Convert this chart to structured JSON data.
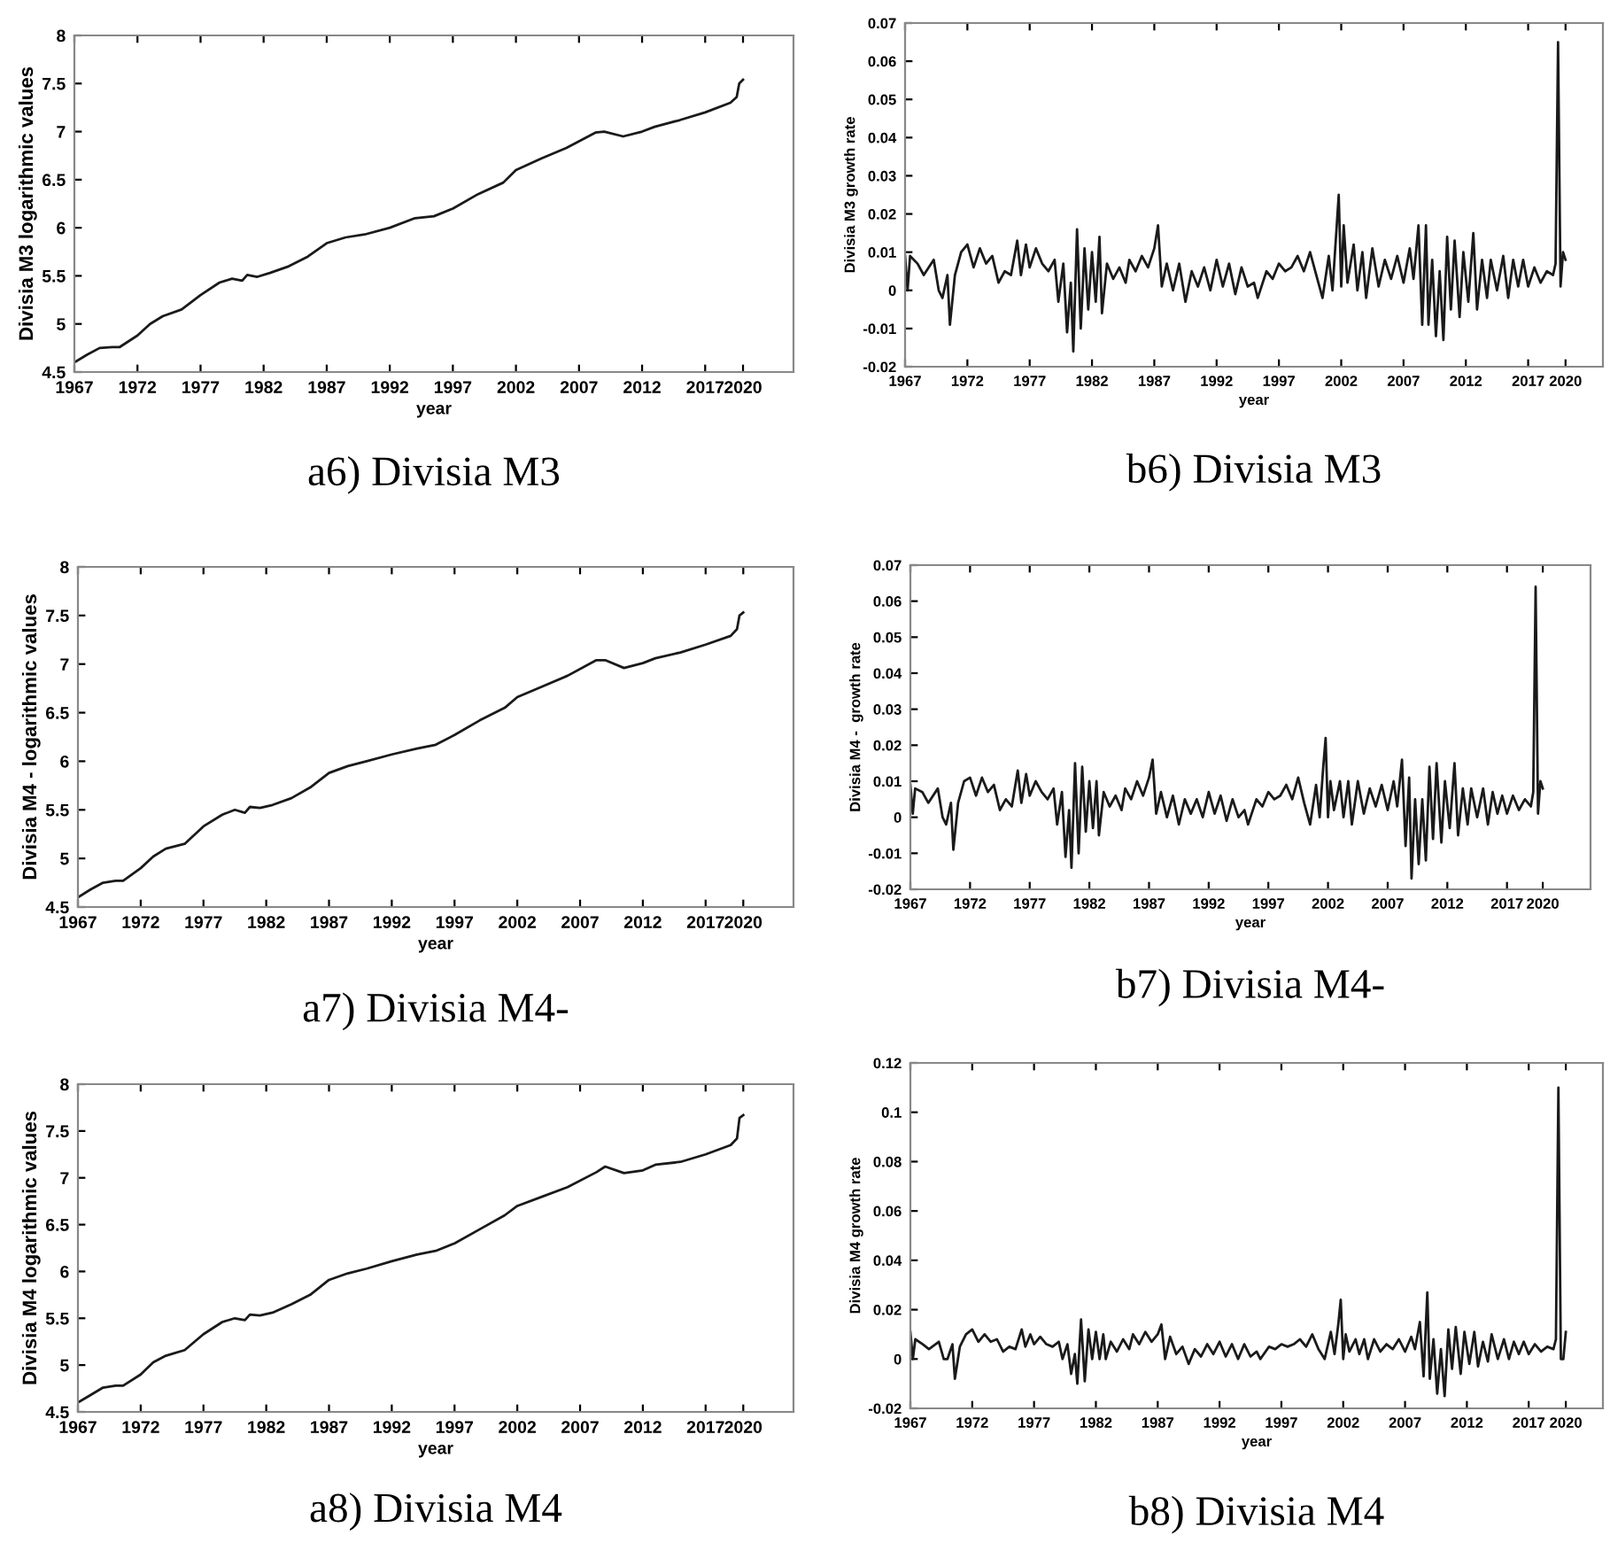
{
  "chart_data": [
    {
      "type": "line",
      "title": "a6) Divisia M3",
      "xlabel": "year",
      "ylabel": "Divisia M3 logarithmic values",
      "xlim": [
        1967,
        2024
      ],
      "xticks": [
        1967,
        1972,
        1977,
        1982,
        1987,
        1992,
        1997,
        2002,
        2007,
        2012,
        2017,
        2020
      ],
      "ylim": [
        4.5,
        8
      ],
      "yticks": [
        4.5,
        5,
        5.5,
        6,
        6.5,
        7,
        7.5,
        8
      ],
      "x": [
        1967,
        1968,
        1969,
        1970,
        1970.6,
        1972,
        1973,
        1974,
        1975.5,
        1977,
        1978.5,
        1979.5,
        1980.3,
        1980.7,
        1981.5,
        1982.5,
        1984,
        1985.5,
        1987,
        1988.5,
        1990,
        1992,
        1994,
        1995.5,
        1997,
        1999,
        2001,
        2002,
        2004,
        2006,
        2008.3,
        2009,
        2010.5,
        2012,
        2013,
        2015,
        2017,
        2019,
        2019.5,
        2019.7,
        2020
      ],
      "series": [
        {
          "color": "#1a1a1a",
          "values": [
            4.6,
            4.68,
            4.75,
            4.76,
            4.76,
            4.88,
            5.0,
            5.08,
            5.15,
            5.3,
            5.43,
            5.47,
            5.45,
            5.51,
            5.49,
            5.53,
            5.6,
            5.7,
            5.84,
            5.9,
            5.93,
            6.0,
            6.1,
            6.12,
            6.2,
            6.35,
            6.47,
            6.6,
            6.72,
            6.83,
            6.99,
            7.0,
            6.95,
            7.0,
            7.05,
            7.12,
            7.2,
            7.3,
            7.36,
            7.5,
            7.54
          ]
        }
      ]
    },
    {
      "type": "line",
      "title": "b6) Divisia M3",
      "xlabel": "year",
      "ylabel": "Divisia M3 growth rate",
      "xlim": [
        1967,
        2023
      ],
      "xticks": [
        1967,
        1972,
        1977,
        1982,
        1987,
        1992,
        1997,
        2002,
        2007,
        2012,
        2017,
        2020
      ],
      "ylim": [
        -0.02,
        0.07
      ],
      "yticks": [
        -0.02,
        -0.01,
        0,
        0.01,
        0.02,
        0.03,
        0.04,
        0.05,
        0.06,
        0.07
      ],
      "x": [
        1967,
        1967.2,
        1967.4,
        1968,
        1968.5,
        1969.3,
        1969.7,
        1970,
        1970.4,
        1970.6,
        1971,
        1971.5,
        1972,
        1972.5,
        1973,
        1973.5,
        1974,
        1974.5,
        1975,
        1975.5,
        1976,
        1976.3,
        1976.7,
        1977,
        1977.5,
        1978,
        1978.5,
        1979,
        1979.3,
        1979.7,
        1980,
        1980.3,
        1980.5,
        1980.8,
        1981.1,
        1981.4,
        1981.7,
        1982,
        1982.3,
        1982.6,
        1982.8,
        1983.2,
        1983.7,
        1984.2,
        1984.7,
        1985,
        1985.5,
        1986,
        1986.5,
        1987,
        1987.3,
        1987.6,
        1988,
        1988.5,
        1989,
        1989.5,
        1990,
        1990.5,
        1991,
        1991.5,
        1992,
        1992.5,
        1993,
        1993.5,
        1994,
        1994.5,
        1995,
        1995.3,
        1996,
        1996.5,
        1997,
        1997.5,
        1998,
        1998.5,
        1999,
        1999.5,
        2000,
        2000.5,
        2001,
        2001.3,
        2001.6,
        2001.8,
        2002,
        2002.2,
        2002.5,
        2003,
        2003.3,
        2003.7,
        2004,
        2004.5,
        2005,
        2005.5,
        2006,
        2006.5,
        2007,
        2007.5,
        2007.8,
        2008.2,
        2008.5,
        2008.8,
        2009,
        2009.3,
        2009.6,
        2009.9,
        2010.2,
        2010.5,
        2010.8,
        2011.1,
        2011.5,
        2011.8,
        2012.2,
        2012.6,
        2012.9,
        2013.3,
        2013.7,
        2014,
        2014.5,
        2015,
        2015.4,
        2015.8,
        2016.2,
        2016.6,
        2017,
        2017.5,
        2018,
        2018.5,
        2019,
        2019.2,
        2019.4,
        2019.6,
        2019.8,
        2020
      ],
      "series": [
        {
          "color": "#1a1a1a",
          "values": [
            0.009,
            0.0,
            0.009,
            0.007,
            0.004,
            0.008,
            0.0,
            -0.002,
            0.004,
            -0.009,
            0.004,
            0.01,
            0.012,
            0.006,
            0.011,
            0.007,
            0.009,
            0.002,
            0.005,
            0.004,
            0.013,
            0.004,
            0.012,
            0.006,
            0.011,
            0.007,
            0.005,
            0.008,
            -0.003,
            0.007,
            -0.011,
            0.002,
            -0.016,
            0.016,
            -0.01,
            0.011,
            -0.005,
            0.01,
            -0.003,
            0.014,
            -0.006,
            0.007,
            0.003,
            0.006,
            0.002,
            0.008,
            0.005,
            0.009,
            0.006,
            0.011,
            0.017,
            0.001,
            0.007,
            0.0,
            0.007,
            -0.003,
            0.005,
            0.001,
            0.006,
            0.0,
            0.008,
            0.001,
            0.007,
            -0.001,
            0.006,
            0.001,
            0.002,
            -0.002,
            0.005,
            0.003,
            0.007,
            0.005,
            0.006,
            0.009,
            0.005,
            0.01,
            0.004,
            -0.002,
            0.009,
            0.0,
            0.015,
            0.025,
            0.001,
            0.017,
            0.002,
            0.012,
            0.0,
            0.01,
            -0.002,
            0.011,
            0.001,
            0.008,
            0.003,
            0.009,
            0.002,
            0.011,
            0.003,
            0.017,
            -0.009,
            0.017,
            -0.009,
            0.008,
            -0.012,
            0.005,
            -0.013,
            0.014,
            -0.005,
            0.013,
            -0.007,
            0.01,
            -0.003,
            0.015,
            -0.005,
            0.008,
            -0.002,
            0.008,
            0.0,
            0.009,
            -0.002,
            0.008,
            0.001,
            0.008,
            0.001,
            0.006,
            0.002,
            0.005,
            0.004,
            0.007,
            0.065,
            0.001,
            0.01,
            0.008
          ]
        }
      ]
    },
    {
      "type": "line",
      "title": "a7) Divisia M4-",
      "xlabel": "year",
      "ylabel": "Divisia M4 - logarithmic values",
      "xlim": [
        1967,
        2024
      ],
      "xticks": [
        1967,
        1972,
        1977,
        1982,
        1987,
        1992,
        1997,
        2002,
        2007,
        2012,
        2017,
        2020
      ],
      "ylim": [
        4.5,
        8
      ],
      "yticks": [
        4.5,
        5,
        5.5,
        6,
        6.5,
        7,
        7.5,
        8
      ],
      "x": [
        1967,
        1968,
        1969,
        1970,
        1970.6,
        1972,
        1973,
        1974,
        1975.5,
        1977,
        1978.5,
        1979.5,
        1980.3,
        1980.7,
        1981.5,
        1982.5,
        1984,
        1985.5,
        1987,
        1988.5,
        1990,
        1992,
        1994,
        1995.5,
        1997,
        1999,
        2001,
        2002,
        2004,
        2006,
        2008.3,
        2009,
        2010.5,
        2012,
        2013,
        2015,
        2017,
        2019,
        2019.5,
        2019.7,
        2020
      ],
      "series": [
        {
          "color": "#1a1a1a",
          "values": [
            4.6,
            4.68,
            4.75,
            4.77,
            4.77,
            4.9,
            5.02,
            5.1,
            5.15,
            5.33,
            5.45,
            5.5,
            5.47,
            5.53,
            5.52,
            5.55,
            5.62,
            5.73,
            5.88,
            5.95,
            6.0,
            6.07,
            6.13,
            6.17,
            6.27,
            6.42,
            6.55,
            6.66,
            6.77,
            6.88,
            7.04,
            7.04,
            6.96,
            7.01,
            7.06,
            7.12,
            7.2,
            7.29,
            7.36,
            7.5,
            7.53
          ]
        }
      ]
    },
    {
      "type": "line",
      "title": "b7) Divisia M4-",
      "xlabel": "year",
      "ylabel": "Divisia M4 -  growth rate",
      "xlim": [
        1967,
        2024
      ],
      "xticks": [
        1967,
        1972,
        1977,
        1982,
        1987,
        1992,
        1997,
        2002,
        2007,
        2012,
        2017,
        2020
      ],
      "ylim": [
        -0.02,
        0.07
      ],
      "yticks": [
        -0.02,
        -0.01,
        0,
        0.01,
        0.02,
        0.03,
        0.04,
        0.05,
        0.06,
        0.07
      ],
      "x": [
        1967,
        1967.2,
        1967.4,
        1968,
        1968.5,
        1969.3,
        1969.7,
        1970,
        1970.4,
        1970.6,
        1971,
        1971.5,
        1972,
        1972.5,
        1973,
        1973.5,
        1974,
        1974.5,
        1975,
        1975.5,
        1976,
        1976.3,
        1976.7,
        1977,
        1977.5,
        1978,
        1978.5,
        1979,
        1979.3,
        1979.7,
        1980,
        1980.3,
        1980.5,
        1980.8,
        1981.1,
        1981.4,
        1981.7,
        1982,
        1982.3,
        1982.6,
        1982.8,
        1983.2,
        1983.7,
        1984.2,
        1984.7,
        1985,
        1985.5,
        1986,
        1986.5,
        1987,
        1987.3,
        1987.6,
        1988,
        1988.5,
        1989,
        1989.5,
        1990,
        1990.5,
        1991,
        1991.5,
        1992,
        1992.5,
        1993,
        1993.5,
        1994,
        1994.5,
        1995,
        1995.3,
        1996,
        1996.5,
        1997,
        1997.5,
        1998,
        1998.5,
        1999,
        1999.5,
        2000,
        2000.5,
        2001,
        2001.3,
        2001.6,
        2001.8,
        2002,
        2002.2,
        2002.5,
        2003,
        2003.3,
        2003.7,
        2004,
        2004.5,
        2005,
        2005.5,
        2006,
        2006.5,
        2007,
        2007.5,
        2007.8,
        2008.2,
        2008.5,
        2008.8,
        2009,
        2009.3,
        2009.6,
        2009.9,
        2010.2,
        2010.5,
        2010.8,
        2011.1,
        2011.5,
        2011.8,
        2012.2,
        2012.6,
        2012.9,
        2013.3,
        2013.7,
        2014,
        2014.5,
        2015,
        2015.4,
        2015.8,
        2016.2,
        2016.6,
        2017,
        2017.5,
        2018,
        2018.5,
        2019,
        2019.2,
        2019.4,
        2019.6,
        2019.8,
        2020
      ],
      "series": [
        {
          "color": "#1a1a1a",
          "values": [
            0.009,
            0.001,
            0.008,
            0.007,
            0.004,
            0.008,
            0.0,
            -0.002,
            0.004,
            -0.009,
            0.004,
            0.01,
            0.011,
            0.006,
            0.011,
            0.007,
            0.009,
            0.002,
            0.005,
            0.003,
            0.013,
            0.004,
            0.012,
            0.006,
            0.01,
            0.007,
            0.005,
            0.008,
            -0.002,
            0.007,
            -0.011,
            0.002,
            -0.014,
            0.015,
            -0.01,
            0.014,
            -0.004,
            0.01,
            -0.003,
            0.01,
            -0.005,
            0.007,
            0.003,
            0.006,
            0.002,
            0.008,
            0.005,
            0.01,
            0.006,
            0.011,
            0.016,
            0.001,
            0.007,
            0.0,
            0.006,
            -0.002,
            0.005,
            0.001,
            0.005,
            0.0,
            0.007,
            0.001,
            0.006,
            -0.001,
            0.005,
            0.0,
            0.002,
            -0.002,
            0.005,
            0.003,
            0.007,
            0.005,
            0.006,
            0.009,
            0.005,
            0.011,
            0.004,
            -0.002,
            0.009,
            0.0,
            0.014,
            0.022,
            0.0,
            0.01,
            0.002,
            0.01,
            0.0,
            0.01,
            -0.002,
            0.01,
            0.001,
            0.008,
            0.003,
            0.009,
            0.002,
            0.01,
            0.003,
            0.016,
            -0.008,
            0.011,
            -0.017,
            0.005,
            -0.013,
            0.005,
            -0.012,
            0.014,
            -0.006,
            0.015,
            -0.007,
            0.01,
            -0.003,
            0.015,
            -0.005,
            0.008,
            -0.002,
            0.008,
            0.0,
            0.008,
            -0.002,
            0.007,
            0.001,
            0.006,
            0.001,
            0.006,
            0.002,
            0.005,
            0.003,
            0.007,
            0.064,
            0.001,
            0.01,
            0.008
          ]
        }
      ]
    },
    {
      "type": "line",
      "title": "a8) Divisia M4",
      "xlabel": "year",
      "ylabel": "Divisia M4 logarithmic values",
      "xlim": [
        1967,
        2024
      ],
      "xticks": [
        1967,
        1972,
        1977,
        1982,
        1987,
        1992,
        1997,
        2002,
        2007,
        2012,
        2017,
        2020
      ],
      "ylim": [
        4.5,
        8
      ],
      "yticks": [
        4.5,
        5,
        5.5,
        6,
        6.5,
        7,
        7.5,
        8
      ],
      "x": [
        1967,
        1968,
        1969,
        1970,
        1970.6,
        1972,
        1973,
        1974,
        1975.5,
        1977,
        1978.5,
        1979.5,
        1980.3,
        1980.7,
        1981.5,
        1982.5,
        1984,
        1985.5,
        1987,
        1988.5,
        1990,
        1992,
        1994,
        1995.5,
        1997,
        1999,
        2001,
        2002,
        2004,
        2006,
        2008.3,
        2009,
        2010.5,
        2012,
        2013,
        2015,
        2017,
        2019,
        2019.5,
        2019.7,
        2020
      ],
      "series": [
        {
          "color": "#1a1a1a",
          "values": [
            4.6,
            4.68,
            4.76,
            4.78,
            4.78,
            4.9,
            5.03,
            5.1,
            5.16,
            5.33,
            5.46,
            5.5,
            5.48,
            5.54,
            5.53,
            5.56,
            5.65,
            5.75,
            5.91,
            5.98,
            6.03,
            6.11,
            6.18,
            6.22,
            6.3,
            6.45,
            6.6,
            6.7,
            6.8,
            6.9,
            7.06,
            7.12,
            7.05,
            7.08,
            7.14,
            7.17,
            7.25,
            7.35,
            7.42,
            7.64,
            7.67
          ]
        }
      ]
    },
    {
      "type": "line",
      "title": "b8) Divisia M4",
      "xlabel": "year",
      "ylabel": "Divisia M4 growth rate",
      "xlim": [
        1967,
        2023
      ],
      "xticks": [
        1967,
        1972,
        1977,
        1982,
        1987,
        1992,
        1997,
        2002,
        2007,
        2012,
        2017,
        2020
      ],
      "ylim": [
        -0.02,
        0.12
      ],
      "yticks": [
        -0.02,
        0,
        0.02,
        0.04,
        0.06,
        0.08,
        0.1,
        0.12
      ],
      "x": [
        1967,
        1967.2,
        1967.4,
        1968,
        1968.5,
        1969.3,
        1969.7,
        1970,
        1970.4,
        1970.6,
        1971,
        1971.5,
        1972,
        1972.5,
        1973,
        1973.5,
        1974,
        1974.5,
        1975,
        1975.5,
        1976,
        1976.3,
        1976.7,
        1977,
        1977.5,
        1978,
        1978.5,
        1979,
        1979.3,
        1979.7,
        1980,
        1980.3,
        1980.5,
        1980.8,
        1981.1,
        1981.4,
        1981.7,
        1982,
        1982.3,
        1982.6,
        1982.8,
        1983.2,
        1983.7,
        1984.2,
        1984.7,
        1985,
        1985.5,
        1986,
        1986.5,
        1987,
        1987.3,
        1987.6,
        1988,
        1988.5,
        1989,
        1989.5,
        1990,
        1990.5,
        1991,
        1991.5,
        1992,
        1992.5,
        1993,
        1993.5,
        1994,
        1994.5,
        1995,
        1995.3,
        1996,
        1996.5,
        1997,
        1997.5,
        1998,
        1998.5,
        1999,
        1999.5,
        2000,
        2000.5,
        2001,
        2001.3,
        2001.6,
        2001.8,
        2002,
        2002.2,
        2002.5,
        2003,
        2003.3,
        2003.7,
        2004,
        2004.5,
        2005,
        2005.5,
        2006,
        2006.5,
        2007,
        2007.5,
        2007.8,
        2008.2,
        2008.5,
        2008.8,
        2009,
        2009.3,
        2009.6,
        2009.9,
        2010.2,
        2010.5,
        2010.8,
        2011.1,
        2011.5,
        2011.8,
        2012.2,
        2012.6,
        2012.9,
        2013.3,
        2013.7,
        2014,
        2014.5,
        2015,
        2015.4,
        2015.8,
        2016.2,
        2016.6,
        2017,
        2017.5,
        2018,
        2018.5,
        2019,
        2019.2,
        2019.4,
        2019.6,
        2019.8,
        2020
      ],
      "series": [
        {
          "color": "#1a1a1a",
          "values": [
            0.011,
            0.0,
            0.008,
            0.006,
            0.004,
            0.007,
            0.0,
            0.0,
            0.006,
            -0.008,
            0.005,
            0.01,
            0.012,
            0.007,
            0.01,
            0.007,
            0.008,
            0.003,
            0.005,
            0.004,
            0.012,
            0.005,
            0.01,
            0.006,
            0.009,
            0.006,
            0.005,
            0.007,
            0.0,
            0.006,
            -0.006,
            0.002,
            -0.01,
            0.016,
            -0.009,
            0.012,
            0.0,
            0.011,
            0.0,
            0.01,
            0.0,
            0.007,
            0.003,
            0.008,
            0.004,
            0.01,
            0.006,
            0.011,
            0.007,
            0.01,
            0.014,
            0.0,
            0.009,
            0.002,
            0.005,
            -0.002,
            0.004,
            0.001,
            0.006,
            0.002,
            0.007,
            0.001,
            0.006,
            0.0,
            0.006,
            0.001,
            0.003,
            0.0,
            0.005,
            0.004,
            0.006,
            0.005,
            0.006,
            0.008,
            0.005,
            0.01,
            0.004,
            0.0,
            0.011,
            0.002,
            0.014,
            0.024,
            0.0,
            0.01,
            0.003,
            0.008,
            0.002,
            0.008,
            0.0,
            0.008,
            0.003,
            0.006,
            0.004,
            0.008,
            0.003,
            0.009,
            0.004,
            0.015,
            -0.007,
            0.027,
            -0.008,
            0.008,
            -0.014,
            0.004,
            -0.015,
            0.012,
            -0.004,
            0.013,
            -0.006,
            0.011,
            -0.002,
            0.011,
            -0.003,
            0.007,
            -0.001,
            0.01,
            0.0,
            0.008,
            0.0,
            0.007,
            0.002,
            0.007,
            0.002,
            0.006,
            0.003,
            0.005,
            0.004,
            0.008,
            0.11,
            0.0,
            0.0,
            0.011
          ]
        }
      ]
    }
  ]
}
